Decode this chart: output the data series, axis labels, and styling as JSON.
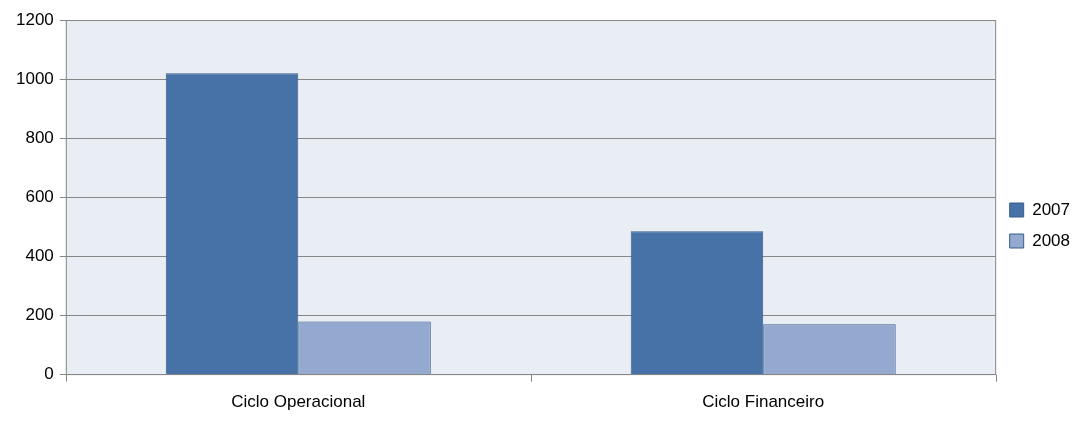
{
  "chart_data": {
    "type": "bar",
    "categories": [
      "Ciclo Operacional",
      "Ciclo Financeiro"
    ],
    "series": [
      {
        "name": "2007",
        "color": "#4672a8",
        "values": [
          1020,
          485
        ]
      },
      {
        "name": "2008",
        "color": "#94a9d0",
        "values": [
          180,
          170
        ]
      }
    ],
    "ylim": [
      0,
      1200
    ],
    "yticks": [
      0,
      200,
      400,
      600,
      800,
      1000,
      1200
    ],
    "grid": "y",
    "legend": "right"
  }
}
